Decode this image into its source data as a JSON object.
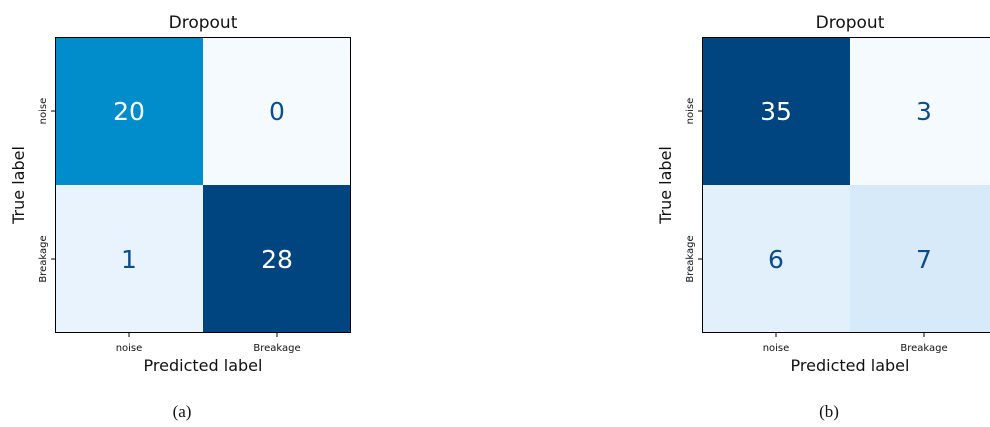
{
  "colors": {
    "cell_low": "#f5faff",
    "cell_high": "#004480",
    "text_on_dark": "#ffffff",
    "text_on_light": "#0b4c8c"
  },
  "chart_data": [
    {
      "type": "heatmap",
      "panel_caption": "(a)",
      "title": "Dropout",
      "xlabel": "Predicted label",
      "ylabel": "True label",
      "x_categories": [
        "noise",
        "Breakage"
      ],
      "y_categories": [
        "noise",
        "Breakage"
      ],
      "values": [
        [
          20,
          0
        ],
        [
          1,
          28
        ]
      ],
      "cell_colors": [
        [
          "#018ccb",
          "#f5faff"
        ],
        [
          "#e8f3fd",
          "#004480"
        ]
      ],
      "text_colors": [
        [
          "#ffffff",
          "#0b4c8c"
        ],
        [
          "#0b4c8c",
          "#ffffff"
        ]
      ]
    },
    {
      "type": "heatmap",
      "panel_caption": "(b)",
      "title": "Dropout",
      "xlabel": "Predicted label",
      "ylabel": "True label",
      "x_categories": [
        "noise",
        "Breakage"
      ],
      "y_categories": [
        "noise",
        "Breakage"
      ],
      "values": [
        [
          35,
          3
        ],
        [
          6,
          7
        ]
      ],
      "cell_colors": [
        [
          "#004480",
          "#f5faff"
        ],
        [
          "#e2f0fc",
          "#d7eaf9"
        ]
      ],
      "text_colors": [
        [
          "#ffffff",
          "#0b4c8c"
        ],
        [
          "#0b4c8c",
          "#0b4c8c"
        ]
      ]
    }
  ]
}
